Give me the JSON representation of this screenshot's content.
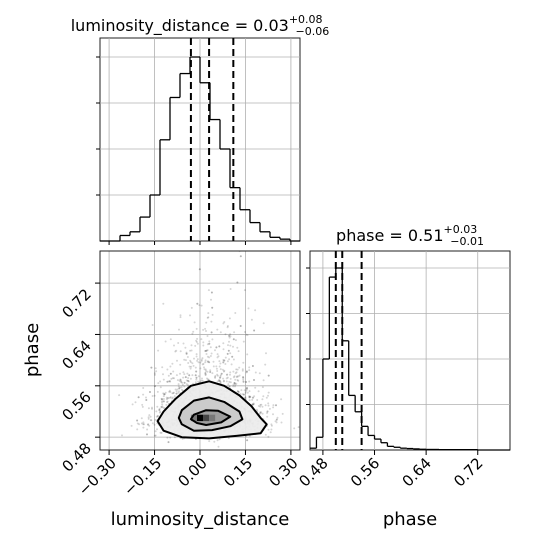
{
  "chart_data": [
    {
      "type": "histogram",
      "panel": "top-left",
      "title": "luminosity_distance = 0.03",
      "title_sup": "+0.08",
      "title_sub": "−0.06",
      "xlim": [
        -0.33,
        0.33
      ],
      "grid": true,
      "bins": [
        -0.33,
        -0.297,
        -0.264,
        -0.231,
        -0.198,
        -0.165,
        -0.132,
        -0.099,
        -0.066,
        -0.033,
        0.0,
        0.033,
        0.066,
        0.099,
        0.132,
        0.165,
        0.198,
        0.231,
        0.264,
        0.297,
        0.33
      ],
      "values": [
        0,
        0,
        0.03,
        0.05,
        0.13,
        0.25,
        0.55,
        0.78,
        0.91,
        1.0,
        0.86,
        0.66,
        0.5,
        0.29,
        0.17,
        0.1,
        0.05,
        0.02,
        0.01,
        0
      ],
      "quantiles": [
        -0.03,
        0.03,
        0.11
      ]
    },
    {
      "type": "histogram",
      "panel": "bottom-right",
      "title": "phase = 0.51",
      "title_sup": "+0.03",
      "title_sub": "−0.01",
      "xlabel": "phase",
      "xlim": [
        0.46,
        0.77
      ],
      "xticks": [
        "0.48",
        "0.56",
        "0.64",
        "0.72"
      ],
      "xtick_values": [
        0.48,
        0.56,
        0.64,
        0.72
      ],
      "grid": true,
      "bins": [
        0.46,
        0.47,
        0.48,
        0.49,
        0.5,
        0.51,
        0.52,
        0.53,
        0.54,
        0.55,
        0.56,
        0.57,
        0.58,
        0.59,
        0.6,
        0.61,
        0.62,
        0.63,
        0.64,
        0.66,
        0.72,
        0.77
      ],
      "values": [
        0.01,
        0.07,
        0.5,
        0.95,
        1.0,
        0.6,
        0.3,
        0.21,
        0.13,
        0.08,
        0.06,
        0.04,
        0.02,
        0.015,
        0.01,
        0.008,
        0.006,
        0.004,
        0.003,
        0.002,
        0
      ],
      "quantiles": [
        0.5,
        0.51,
        0.54
      ]
    },
    {
      "type": "scatter",
      "panel": "bottom-left",
      "xlabel": "luminosity_distance",
      "ylabel": "phase",
      "xlim": [
        -0.33,
        0.33
      ],
      "ylim": [
        0.46,
        0.77
      ],
      "xticks": [
        "−0.30",
        "−0.15",
        "0.00",
        "0.15",
        "0.30"
      ],
      "xtick_values": [
        -0.3,
        -0.15,
        0.0,
        0.15,
        0.3
      ],
      "yticks": [
        "0.48",
        "0.56",
        "0.64",
        "0.72"
      ],
      "ytick_values": [
        0.48,
        0.56,
        0.64,
        0.72
      ],
      "grid": true,
      "contours": [
        [
          [
            -0.12,
            0.52
          ],
          [
            -0.08,
            0.54
          ],
          [
            -0.03,
            0.56
          ],
          [
            0.03,
            0.567
          ],
          [
            0.08,
            0.56
          ],
          [
            0.13,
            0.545
          ],
          [
            0.17,
            0.528
          ],
          [
            0.2,
            0.51
          ],
          [
            0.22,
            0.5
          ],
          [
            0.2,
            0.486
          ],
          [
            0.12,
            0.482
          ],
          [
            0.03,
            0.478
          ],
          [
            -0.06,
            0.48
          ],
          [
            -0.12,
            0.49
          ],
          [
            -0.14,
            0.505
          ]
        ],
        [
          [
            -0.06,
            0.522
          ],
          [
            -0.02,
            0.537
          ],
          [
            0.03,
            0.542
          ],
          [
            0.08,
            0.535
          ],
          [
            0.13,
            0.52
          ],
          [
            0.14,
            0.508
          ],
          [
            0.1,
            0.497
          ],
          [
            0.04,
            0.491
          ],
          [
            -0.02,
            0.49
          ],
          [
            -0.06,
            0.5
          ],
          [
            -0.07,
            0.51
          ]
        ],
        [
          [
            -0.02,
            0.515
          ],
          [
            0.02,
            0.522
          ],
          [
            0.06,
            0.521
          ],
          [
            0.1,
            0.512
          ],
          [
            0.07,
            0.503
          ],
          [
            0.02,
            0.499
          ],
          [
            -0.01,
            0.502
          ],
          [
            -0.03,
            0.508
          ]
        ]
      ],
      "density_cells": [
        {
          "x": 0.0,
          "y": 0.51,
          "shade": "#000000"
        },
        {
          "x": 0.02,
          "y": 0.51,
          "shade": "#444444"
        },
        {
          "x": -0.02,
          "y": 0.51,
          "shade": "#777777"
        },
        {
          "x": 0.04,
          "y": 0.51,
          "shade": "#777777"
        }
      ]
    }
  ]
}
